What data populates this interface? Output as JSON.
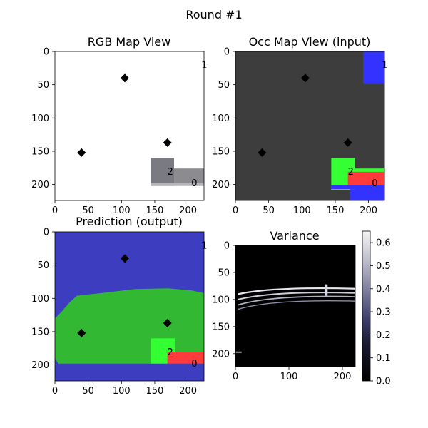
{
  "figure": {
    "title": "Round #1"
  },
  "panels": {
    "rgb": {
      "title": "RGB Map View"
    },
    "occ": {
      "title": "Occ Map View (input)"
    },
    "pred": {
      "title": "Prediction (output)"
    },
    "var": {
      "title": "Variance"
    }
  },
  "axes": {
    "map_x_ticks": [
      0,
      50,
      100,
      150,
      200
    ],
    "map_y_ticks": [
      0,
      50,
      100,
      150,
      200
    ],
    "map_extent": [
      0,
      224
    ],
    "var_x_ticks": [
      0,
      100,
      200
    ],
    "var_y_ticks": [
      0,
      50,
      100,
      150,
      200
    ]
  },
  "colorbar": {
    "ticks": [
      0.0,
      0.1,
      0.2,
      0.3,
      0.4,
      0.5,
      0.6
    ],
    "range": [
      0.0,
      0.65
    ],
    "colormap": "gray-with-blue-tint"
  },
  "markers": {
    "diamonds": [
      {
        "x": 105,
        "y": 40
      },
      {
        "x": 40,
        "y": 152
      },
      {
        "x": 169,
        "y": 137
      }
    ],
    "labels": [
      {
        "text": "1",
        "x": 220,
        "y": 20
      },
      {
        "text": "2",
        "x": 169,
        "y": 180
      },
      {
        "text": "0",
        "x": 205,
        "y": 197
      }
    ]
  },
  "colors": {
    "occ_background": "#3d3d3d",
    "pred_background": "#3d3dbf",
    "floor_green": "#33b833",
    "goal_green": "#33ff33",
    "goal_red": "#ff3b3b",
    "obstacle_blue": "#3333ff",
    "rgb_patch": "#7a7a82",
    "marker": "#000000"
  }
}
